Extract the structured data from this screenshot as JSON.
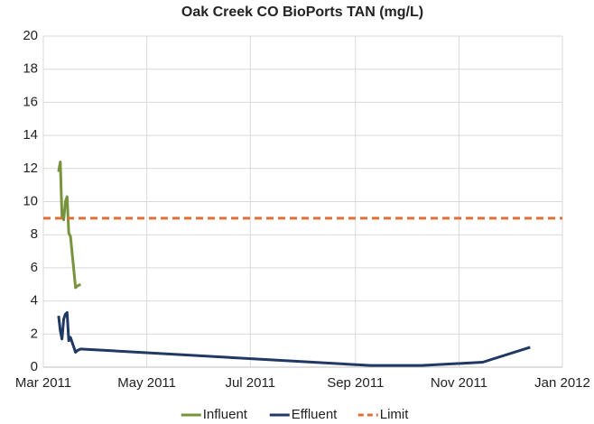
{
  "chart_data": {
    "type": "line",
    "title": "Oak Creek CO BioPorts TAN (mg/L)",
    "xlim": [
      "2011-03",
      "2012-01"
    ],
    "xticks": [
      {
        "value": "2011-03",
        "label": "Mar 2011"
      },
      {
        "value": "2011-05",
        "label": "May 2011"
      },
      {
        "value": "2011-07",
        "label": "Jul 2011"
      },
      {
        "value": "2011-09",
        "label": "Sep 2011"
      },
      {
        "value": "2011-11",
        "label": "Nov 2011"
      },
      {
        "value": "2012-01",
        "label": "Jan 2012"
      }
    ],
    "ylim": [
      0,
      20
    ],
    "yticks": [
      0,
      2,
      4,
      6,
      8,
      10,
      12,
      14,
      16,
      18,
      20
    ],
    "grid": true,
    "legend": "bottom",
    "series": [
      {
        "name": "Influent",
        "color": "#77933c",
        "dash": false,
        "x": [
          "2011-03-10",
          "2011-03-11",
          "2011-03-12",
          "2011-03-13",
          "2011-03-14",
          "2011-03-15",
          "2011-03-16",
          "2011-03-17",
          "2011-03-20",
          "2011-03-21",
          "2011-03-23"
        ],
        "values": [
          11.8,
          12.4,
          9.1,
          8.9,
          10.0,
          10.3,
          8.1,
          7.9,
          4.8,
          4.9,
          5.0
        ]
      },
      {
        "name": "Effluent",
        "color": "#1f3864",
        "dash": false,
        "x": [
          "2011-03-10",
          "2011-03-11",
          "2011-03-12",
          "2011-03-13",
          "2011-03-14",
          "2011-03-15",
          "2011-03-16",
          "2011-03-17",
          "2011-03-20",
          "2011-03-21",
          "2011-03-23",
          "2011-09-10",
          "2011-10-10",
          "2011-11-15",
          "2011-12-13"
        ],
        "values": [
          3.1,
          2.2,
          1.7,
          2.9,
          3.2,
          3.3,
          1.6,
          1.8,
          0.9,
          1.0,
          1.1,
          0.1,
          0.1,
          0.3,
          1.2
        ]
      },
      {
        "name": "Limit",
        "color": "#e0703a",
        "dash": true,
        "x": [
          "2011-03",
          "2012-01"
        ],
        "values": [
          9,
          9
        ]
      }
    ]
  }
}
